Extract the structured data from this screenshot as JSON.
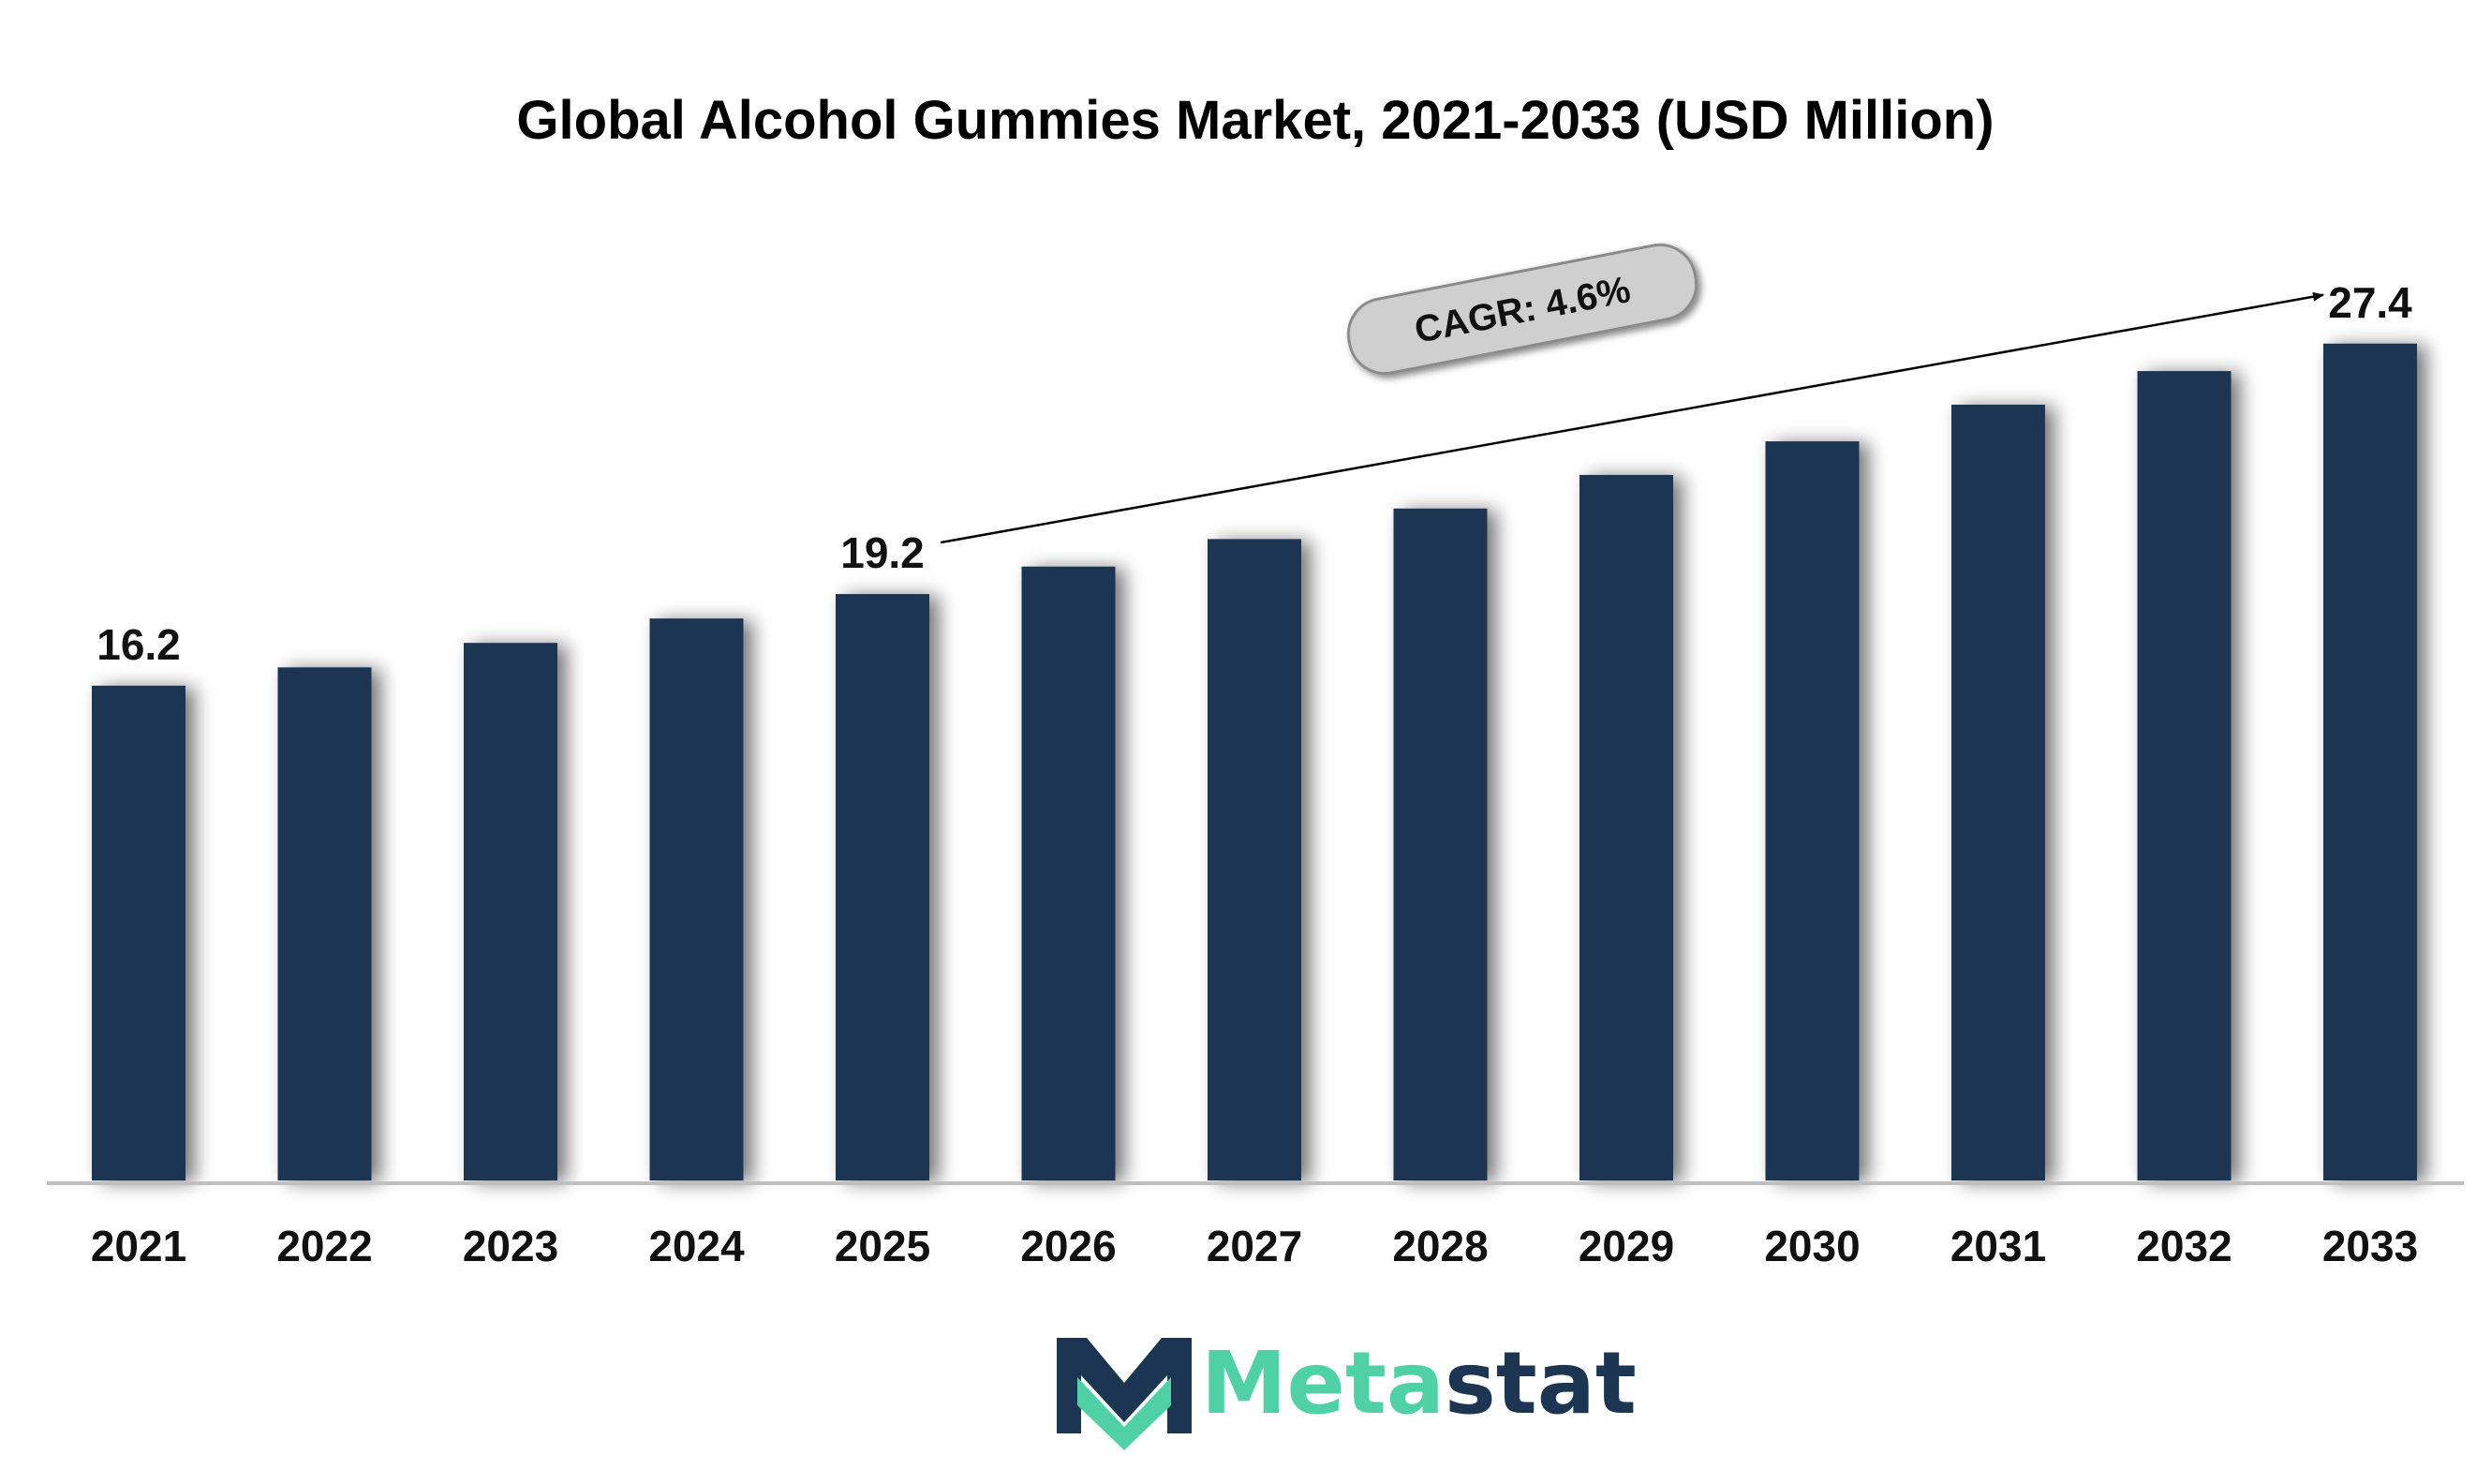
{
  "chart_data": {
    "type": "bar",
    "title": "Global Alcohol Gummies Market, 2021-2033 (USD Million)",
    "xlabel": "",
    "ylabel": "",
    "categories": [
      "2021",
      "2022",
      "2023",
      "2024",
      "2025",
      "2026",
      "2027",
      "2028",
      "2029",
      "2030",
      "2031",
      "2032",
      "2033"
    ],
    "values": [
      16.2,
      16.8,
      17.6,
      18.4,
      19.2,
      20.1,
      21.0,
      22.0,
      23.1,
      24.2,
      25.4,
      26.5,
      27.4
    ],
    "labeled_points": [
      {
        "category": "2021",
        "label": "16.2"
      },
      {
        "category": "2025",
        "label": "19.2"
      },
      {
        "category": "2033",
        "label": "27.4"
      }
    ],
    "ylim": [
      0,
      30
    ],
    "grid": false,
    "bar_color": "#1b3553",
    "annotation": {
      "text": "CAGR: 4.6%",
      "arrow_from": "2025",
      "arrow_to": "2033"
    }
  },
  "logo": {
    "prefix": "Meta",
    "suffix": "stat",
    "prefix_color": "#4fd1a5",
    "suffix_color": "#1b3553",
    "mark_dark": "#1b3553",
    "mark_accent": "#4fd1a5"
  }
}
